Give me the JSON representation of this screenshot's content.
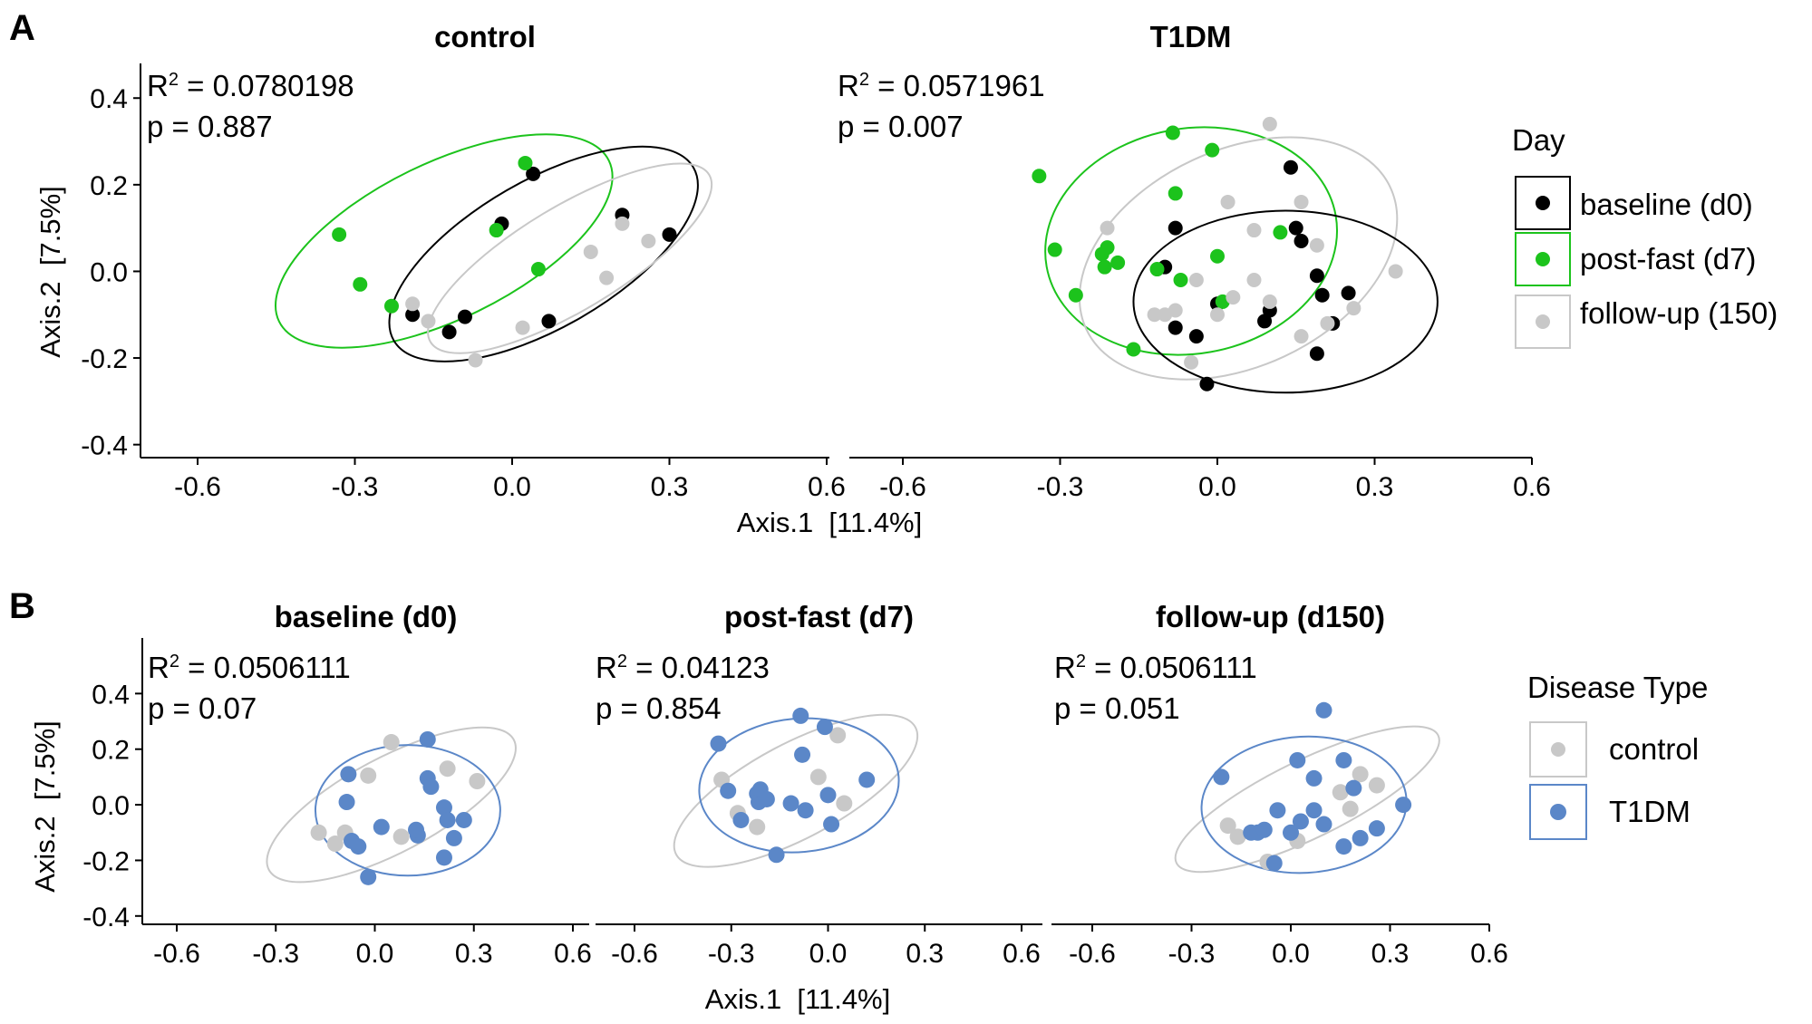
{
  "colors": {
    "baseline": "#000000",
    "postfast": "#1cc31c",
    "followup": "#c8c8c8",
    "control": "#c8c8c8",
    "t1dm": "#5b87c8",
    "axis": "#000000"
  },
  "panel_labels": [
    "A",
    "B"
  ],
  "legend_a": {
    "title": "Day",
    "items": [
      "baseline (d0)",
      "post-fast (d7)",
      "follow-up (150)"
    ]
  },
  "legend_b": {
    "title": "Disease Type",
    "items": [
      "control",
      "T1DM"
    ]
  },
  "shared_axes": {
    "xlabel_a": "Axis.1  [11.4%]",
    "ylabel_a": "Axis.2  [7.5%]",
    "xlabel_b": "Axis.1  [11.4%]",
    "ylabel_b": "Axis.2  [7.5%]"
  },
  "chart_data": [
    {
      "type": "scatter",
      "title": "control",
      "stat_r2": "0.0780198",
      "stat_p": "0.887",
      "xlim": [
        -0.7,
        0.6
      ],
      "ylim": [
        -0.43,
        0.48
      ],
      "xticks": [
        "-0.6",
        "-0.3",
        "0.0",
        "0.3",
        "0.6"
      ],
      "xtick_values": [
        -0.6,
        -0.3,
        0.0,
        0.3,
        0.6
      ],
      "yticks": [
        "0.4",
        "0.2",
        "0.0",
        "-0.2",
        "-0.4"
      ],
      "ytick_values": [
        0.4,
        0.2,
        0.0,
        -0.2,
        -0.4
      ],
      "series": [
        {
          "name": "baseline (d0)",
          "color": "baseline",
          "points": [
            [
              -0.19,
              -0.1
            ],
            [
              -0.12,
              -0.14
            ],
            [
              -0.09,
              -0.105
            ],
            [
              -0.02,
              0.11
            ],
            [
              0.04,
              0.225
            ],
            [
              0.07,
              -0.115
            ],
            [
              0.21,
              0.13
            ],
            [
              0.3,
              0.085
            ]
          ]
        },
        {
          "name": "post-fast (d7)",
          "color": "postfast",
          "points": [
            [
              -0.33,
              0.085
            ],
            [
              -0.29,
              -0.03
            ],
            [
              -0.23,
              -0.08
            ],
            [
              -0.03,
              0.095
            ],
            [
              0.025,
              0.25
            ],
            [
              0.05,
              0.005
            ]
          ]
        },
        {
          "name": "follow-up (150)",
          "color": "followup",
          "points": [
            [
              -0.19,
              -0.075
            ],
            [
              -0.16,
              -0.115
            ],
            [
              -0.07,
              -0.205
            ],
            [
              0.02,
              -0.13
            ],
            [
              0.15,
              0.045
            ],
            [
              0.18,
              -0.015
            ],
            [
              0.21,
              0.11
            ],
            [
              0.26,
              0.07
            ]
          ]
        }
      ],
      "ellipses": [
        {
          "color": "postfast",
          "cx": -0.13,
          "cy": 0.07,
          "rx": 0.35,
          "ry": 0.18,
          "angle": 26
        },
        {
          "color": "baseline",
          "cx": 0.06,
          "cy": 0.04,
          "rx": 0.33,
          "ry": 0.17,
          "angle": 30
        },
        {
          "color": "followup",
          "cx": 0.11,
          "cy": 0.03,
          "rx": 0.31,
          "ry": 0.12,
          "angle": 31
        }
      ]
    },
    {
      "type": "scatter",
      "title": "T1DM",
      "stat_r2": "0.0571961",
      "stat_p": "0.007",
      "xlim": [
        -0.7,
        0.6
      ],
      "ylim": [
        -0.43,
        0.48
      ],
      "xticks": [
        "-0.6",
        "-0.3",
        "0.0",
        "0.3",
        "0.6"
      ],
      "xtick_values": [
        -0.6,
        -0.3,
        0.0,
        0.3,
        0.6
      ],
      "yticks": [],
      "ytick_values": [],
      "series": [
        {
          "name": "baseline (d0)",
          "color": "baseline",
          "points": [
            [
              -0.1,
              0.01
            ],
            [
              -0.08,
              0.1
            ],
            [
              -0.08,
              -0.13
            ],
            [
              -0.04,
              -0.15
            ],
            [
              -0.02,
              -0.26
            ],
            [
              0.0,
              -0.075
            ],
            [
              0.09,
              -0.115
            ],
            [
              0.1,
              -0.09
            ],
            [
              0.14,
              0.24
            ],
            [
              0.15,
              0.1
            ],
            [
              0.16,
              0.07
            ],
            [
              0.19,
              -0.01
            ],
            [
              0.2,
              -0.055
            ],
            [
              0.19,
              -0.19
            ],
            [
              0.22,
              -0.12
            ],
            [
              0.25,
              -0.05
            ]
          ]
        },
        {
          "name": "post-fast (d7)",
          "color": "postfast",
          "points": [
            [
              -0.34,
              0.22
            ],
            [
              -0.31,
              0.05
            ],
            [
              -0.27,
              -0.055
            ],
            [
              -0.22,
              0.04
            ],
            [
              -0.215,
              0.01
            ],
            [
              -0.21,
              0.055
            ],
            [
              -0.19,
              0.02
            ],
            [
              -0.16,
              -0.18
            ],
            [
              -0.115,
              0.005
            ],
            [
              -0.085,
              0.32
            ],
            [
              -0.08,
              0.18
            ],
            [
              -0.07,
              -0.02
            ],
            [
              -0.01,
              0.28
            ],
            [
              0.0,
              0.035
            ],
            [
              0.01,
              -0.07
            ],
            [
              0.12,
              0.09
            ]
          ]
        },
        {
          "name": "follow-up (150)",
          "color": "followup",
          "points": [
            [
              -0.21,
              0.1
            ],
            [
              -0.12,
              -0.1
            ],
            [
              -0.1,
              -0.1
            ],
            [
              -0.08,
              -0.09
            ],
            [
              -0.05,
              -0.21
            ],
            [
              -0.04,
              -0.02
            ],
            [
              0.0,
              -0.1
            ],
            [
              0.02,
              0.16
            ],
            [
              0.03,
              -0.06
            ],
            [
              0.07,
              0.095
            ],
            [
              0.07,
              -0.02
            ],
            [
              0.1,
              0.34
            ],
            [
              0.1,
              -0.07
            ],
            [
              0.16,
              0.16
            ],
            [
              0.16,
              -0.15
            ],
            [
              0.19,
              0.06
            ],
            [
              0.21,
              -0.12
            ],
            [
              0.26,
              -0.085
            ],
            [
              0.34,
              0.0
            ]
          ]
        }
      ],
      "ellipses": [
        {
          "color": "postfast",
          "cx": -0.05,
          "cy": 0.07,
          "rx": 0.28,
          "ry": 0.26,
          "angle": 10
        },
        {
          "color": "followup",
          "cx": 0.04,
          "cy": 0.03,
          "rx": 0.32,
          "ry": 0.25,
          "angle": 25
        },
        {
          "color": "baseline",
          "cx": 0.13,
          "cy": -0.07,
          "rx": 0.29,
          "ry": 0.21,
          "angle": 0
        }
      ]
    },
    {
      "type": "scatter",
      "title": "baseline (d0)",
      "stat_r2": "0.0506111",
      "stat_p": "0.07",
      "xlim": [
        -0.7,
        0.6
      ],
      "ylim": [
        -0.43,
        0.6
      ],
      "xticks": [
        "-0.6",
        "-0.3",
        "0.0",
        "0.3",
        "0.6"
      ],
      "xtick_values": [
        -0.6,
        -0.3,
        0.0,
        0.3,
        0.6
      ],
      "yticks": [
        "0.4",
        "0.2",
        "0.0",
        "-0.2",
        "-0.4"
      ],
      "ytick_values": [
        0.4,
        0.2,
        0.0,
        -0.2,
        -0.4
      ],
      "series": [
        {
          "name": "control",
          "color": "control",
          "points": [
            [
              -0.17,
              -0.1
            ],
            [
              -0.12,
              -0.14
            ],
            [
              -0.09,
              -0.1
            ],
            [
              -0.02,
              0.105
            ],
            [
              0.05,
              0.225
            ],
            [
              0.08,
              -0.115
            ],
            [
              0.22,
              0.13
            ],
            [
              0.31,
              0.085
            ]
          ]
        },
        {
          "name": "T1DM",
          "color": "t1dm",
          "points": [
            [
              -0.08,
              0.11
            ],
            [
              -0.085,
              0.01
            ],
            [
              -0.07,
              -0.13
            ],
            [
              -0.05,
              -0.15
            ],
            [
              -0.02,
              -0.26
            ],
            [
              0.02,
              -0.08
            ],
            [
              0.13,
              -0.11
            ],
            [
              0.125,
              -0.09
            ],
            [
              0.16,
              0.235
            ],
            [
              0.16,
              0.095
            ],
            [
              0.17,
              0.065
            ],
            [
              0.21,
              -0.01
            ],
            [
              0.22,
              -0.055
            ],
            [
              0.21,
              -0.19
            ],
            [
              0.24,
              -0.12
            ],
            [
              0.27,
              -0.055
            ]
          ]
        }
      ],
      "ellipses": [
        {
          "color": "control",
          "cx": 0.05,
          "cy": 0.0,
          "rx": 0.42,
          "ry": 0.17,
          "angle": 28
        },
        {
          "color": "t1dm",
          "cx": 0.1,
          "cy": -0.02,
          "rx": 0.28,
          "ry": 0.235,
          "angle": 0
        }
      ]
    },
    {
      "type": "scatter",
      "title": "post-fast (d7)",
      "stat_r2": "0.04123",
      "stat_p": "0.854",
      "xlim": [
        -0.7,
        0.6
      ],
      "ylim": [
        -0.43,
        0.6
      ],
      "xticks": [
        "-0.6",
        "-0.3",
        "0.0",
        "0.3",
        "0.6"
      ],
      "xtick_values": [
        -0.6,
        -0.3,
        0.0,
        0.3,
        0.6
      ],
      "yticks": [],
      "ytick_values": [],
      "series": [
        {
          "name": "control",
          "color": "control",
          "points": [
            [
              -0.33,
              0.09
            ],
            [
              -0.28,
              -0.03
            ],
            [
              -0.22,
              -0.08
            ],
            [
              -0.03,
              0.1
            ],
            [
              0.03,
              0.25
            ],
            [
              0.05,
              0.005
            ]
          ]
        },
        {
          "name": "T1DM",
          "color": "t1dm",
          "points": [
            [
              -0.34,
              0.22
            ],
            [
              -0.31,
              0.05
            ],
            [
              -0.27,
              -0.055
            ],
            [
              -0.22,
              0.04
            ],
            [
              -0.215,
              0.01
            ],
            [
              -0.21,
              0.055
            ],
            [
              -0.19,
              0.02
            ],
            [
              -0.16,
              -0.18
            ],
            [
              -0.115,
              0.005
            ],
            [
              -0.085,
              0.32
            ],
            [
              -0.08,
              0.18
            ],
            [
              -0.07,
              -0.02
            ],
            [
              -0.01,
              0.28
            ],
            [
              0.0,
              0.035
            ],
            [
              0.01,
              -0.07
            ],
            [
              0.12,
              0.09
            ]
          ]
        }
      ],
      "ellipses": [
        {
          "color": "control",
          "cx": -0.1,
          "cy": 0.05,
          "rx": 0.42,
          "ry": 0.17,
          "angle": 28
        },
        {
          "color": "t1dm",
          "cx": -0.09,
          "cy": 0.07,
          "rx": 0.31,
          "ry": 0.24,
          "angle": 5
        }
      ]
    },
    {
      "type": "scatter",
      "title": "follow-up (d150)",
      "stat_r2": "0.0506111",
      "stat_p": "0.051",
      "xlim": [
        -0.7,
        0.6
      ],
      "ylim": [
        -0.43,
        0.6
      ],
      "xticks": [
        "-0.6",
        "-0.3",
        "0.0",
        "0.3",
        "0.6"
      ],
      "xtick_values": [
        -0.6,
        -0.3,
        0.0,
        0.3,
        0.6
      ],
      "yticks": [],
      "ytick_values": [],
      "series": [
        {
          "name": "control",
          "color": "control",
          "points": [
            [
              -0.19,
              -0.075
            ],
            [
              -0.16,
              -0.115
            ],
            [
              -0.07,
              -0.205
            ],
            [
              0.02,
              -0.13
            ],
            [
              0.15,
              0.045
            ],
            [
              0.18,
              -0.015
            ],
            [
              0.21,
              0.11
            ],
            [
              0.26,
              0.07
            ]
          ]
        },
        {
          "name": "T1DM",
          "color": "t1dm",
          "points": [
            [
              -0.21,
              0.1
            ],
            [
              -0.12,
              -0.1
            ],
            [
              -0.1,
              -0.1
            ],
            [
              -0.08,
              -0.09
            ],
            [
              -0.05,
              -0.21
            ],
            [
              -0.04,
              -0.02
            ],
            [
              0.0,
              -0.1
            ],
            [
              0.02,
              0.16
            ],
            [
              0.03,
              -0.06
            ],
            [
              0.07,
              0.095
            ],
            [
              0.07,
              -0.02
            ],
            [
              0.1,
              0.34
            ],
            [
              0.1,
              -0.07
            ],
            [
              0.16,
              0.16
            ],
            [
              0.16,
              -0.15
            ],
            [
              0.19,
              0.06
            ],
            [
              0.21,
              -0.12
            ],
            [
              0.26,
              -0.085
            ],
            [
              0.34,
              0.0
            ]
          ]
        }
      ],
      "ellipses": [
        {
          "color": "control",
          "cx": 0.05,
          "cy": 0.02,
          "rx": 0.44,
          "ry": 0.14,
          "angle": 26
        },
        {
          "color": "t1dm",
          "cx": 0.04,
          "cy": 0.0,
          "rx": 0.31,
          "ry": 0.245,
          "angle": 3
        }
      ]
    }
  ]
}
